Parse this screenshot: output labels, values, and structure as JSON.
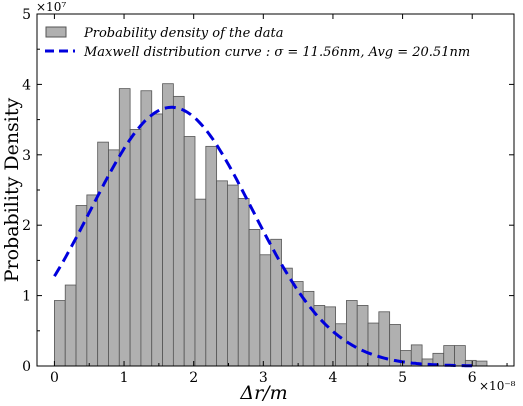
{
  "chart_data": {
    "type": "bar",
    "title": "",
    "xlabel": "Δr/m",
    "ylabel": "Probability Density",
    "x_multiplier_label": "×10⁻⁸",
    "y_multiplier_label": "×10⁷",
    "xlim": [
      -0.25,
      6.6
    ],
    "ylim": [
      0,
      5
    ],
    "x_ticks": [
      0,
      1,
      2,
      3,
      4,
      5,
      6
    ],
    "y_ticks": [
      0,
      1,
      2,
      3,
      4,
      5
    ],
    "x_tick_labels": [
      "0",
      "1",
      "2",
      "3",
      "4",
      "5",
      "6"
    ],
    "y_tick_labels": [
      "0",
      "1",
      "2",
      "3",
      "4",
      "5"
    ],
    "grid": false,
    "legend_placement": "top-left",
    "colors": {
      "bar_fill": "#b0b0b0",
      "bar_edge": "#555555",
      "curve": "#0000dd"
    },
    "series": [
      {
        "name": "Probability density of the data",
        "type": "bar",
        "bin_width": 0.1553,
        "bin_start": 0.0,
        "values": [
          0.93,
          1.15,
          2.28,
          2.43,
          3.18,
          3.07,
          3.94,
          3.36,
          3.91,
          3.58,
          4.01,
          3.83,
          3.26,
          2.37,
          3.12,
          2.63,
          2.57,
          2.38,
          1.94,
          1.58,
          1.8,
          1.39,
          1.2,
          1.06,
          0.86,
          0.84,
          0.6,
          0.93,
          0.86,
          0.61,
          0.77,
          0.59,
          0.22,
          0.3,
          0.1,
          0.18,
          0.29,
          0.29,
          0.08,
          0.07
        ]
      },
      {
        "name": "Maxwell distribution curve : σ = 11.56nm, Avg = 20.51nm",
        "type": "line",
        "style": "dashed",
        "sigma": 1.156,
        "avg": 2.051
      }
    ]
  }
}
